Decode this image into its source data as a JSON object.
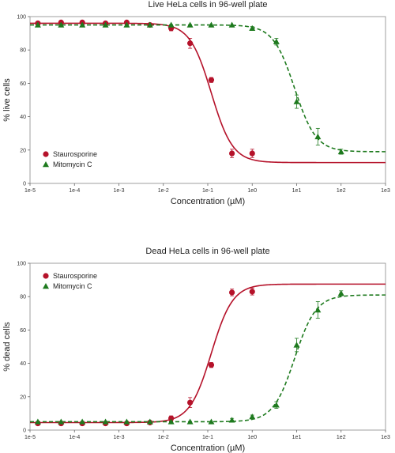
{
  "chart_data": [
    {
      "type": "scatter",
      "title": "Live HeLa cells in 96-well plate",
      "xlabel": "Concentration (µM)",
      "ylabel": "% live cells",
      "xscale": "log",
      "xlim": [
        1e-05,
        1000
      ],
      "ylim": [
        0,
        100
      ],
      "xticks": [
        "1e-5",
        "1e-4",
        "1e-3",
        "1e-2",
        "1e-1",
        "1e0",
        "1e1",
        "1e2",
        "1e3"
      ],
      "yticks": [
        "0",
        "20",
        "40",
        "60",
        "80",
        "100"
      ],
      "legend_position": "bottom-left",
      "series": [
        {
          "name": "Staurosporine",
          "marker": "circle",
          "color": "#b5122a",
          "line_style": "solid",
          "x": [
            1.5e-05,
            5e-05,
            0.00015,
            0.0005,
            0.0015,
            0.005,
            0.015,
            0.04,
            0.12,
            0.35,
            1.0
          ],
          "y": [
            96,
            96.5,
            96.5,
            96,
            96.5,
            95,
            93,
            84,
            62,
            18,
            18
          ],
          "err": [
            0.5,
            0.5,
            0.5,
            0.5,
            0.5,
            1,
            1.5,
            3,
            1.5,
            2.5,
            2.5
          ],
          "fit": {
            "top": 96,
            "bottom": 12.5,
            "ec50": 0.12,
            "hill": 1.8
          }
        },
        {
          "name": "Mitomycin C",
          "marker": "triangle",
          "color": "#1e7a1e",
          "line_style": "dashed",
          "x": [
            1.5e-05,
            5e-05,
            0.00015,
            0.0005,
            0.0015,
            0.005,
            0.015,
            0.04,
            0.12,
            0.35,
            1.0,
            3.5,
            10,
            30,
            100
          ],
          "y": [
            95,
            95,
            95,
            95,
            95,
            95,
            95,
            95,
            95,
            95,
            93,
            85,
            49,
            28,
            19
          ],
          "err": [
            0.5,
            0.5,
            0.5,
            0.5,
            0.5,
            0.5,
            0.5,
            0.5,
            0.5,
            0.5,
            1,
            2,
            4,
            5,
            1.5
          ],
          "fit": {
            "top": 95,
            "bottom": 19,
            "ec50": 9,
            "hill": 1.8
          }
        }
      ]
    },
    {
      "type": "scatter",
      "title": "Dead HeLa cells in 96-well plate",
      "xlabel": "Concentration (µM)",
      "ylabel": "% dead cells",
      "xscale": "log",
      "xlim": [
        1e-05,
        1000
      ],
      "ylim": [
        0,
        100
      ],
      "xticks": [
        "1e-5",
        "1e-4",
        "1e-3",
        "1e-2",
        "1e-1",
        "1e0",
        "1e1",
        "1e2",
        "1e3"
      ],
      "yticks": [
        "0",
        "20",
        "40",
        "60",
        "80",
        "100"
      ],
      "legend_position": "top-left",
      "series": [
        {
          "name": "Staurosporine",
          "marker": "circle",
          "color": "#b5122a",
          "line_style": "solid",
          "x": [
            1.5e-05,
            5e-05,
            0.00015,
            0.0005,
            0.0015,
            0.005,
            0.015,
            0.04,
            0.12,
            0.35,
            1.0
          ],
          "y": [
            4,
            4,
            4,
            4,
            4,
            4.5,
            7,
            16.5,
            39,
            82.5,
            83
          ],
          "err": [
            0.5,
            0.5,
            0.5,
            0.5,
            0.5,
            0.5,
            1.5,
            3,
            1.5,
            2,
            2
          ],
          "fit": {
            "top": 87.5,
            "bottom": 4.5,
            "ec50": 0.12,
            "hill": 1.8
          }
        },
        {
          "name": "Mitomycin C",
          "marker": "triangle",
          "color": "#1e7a1e",
          "line_style": "dashed",
          "x": [
            1.5e-05,
            5e-05,
            0.00015,
            0.0005,
            0.0015,
            0.005,
            0.015,
            0.04,
            0.12,
            0.35,
            1.0,
            3.5,
            10,
            30,
            100
          ],
          "y": [
            5,
            5,
            5,
            5,
            5,
            5,
            5,
            5,
            5,
            6,
            8,
            15,
            51,
            72,
            82
          ],
          "err": [
            0.5,
            0.5,
            0.5,
            0.5,
            0.5,
            0.5,
            0.5,
            0.5,
            0.5,
            1,
            1,
            2,
            4,
            5,
            1.5
          ],
          "fit": {
            "top": 81,
            "bottom": 5,
            "ec50": 9,
            "hill": 1.8
          }
        }
      ]
    }
  ]
}
